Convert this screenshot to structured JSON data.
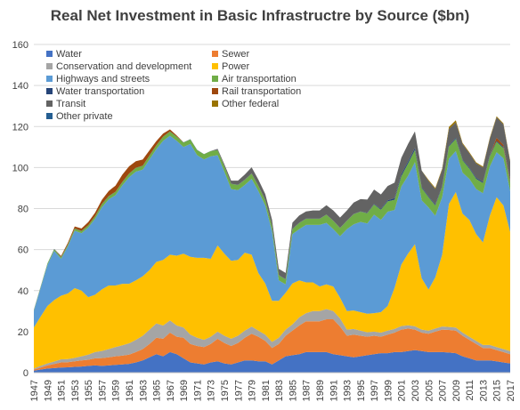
{
  "chart_data": {
    "type": "area",
    "stacked": true,
    "title": "Real Net Investment in Basic Infrastructre by Source ($bn)",
    "xlabel": "",
    "ylabel": "",
    "ylim": [
      0,
      160
    ],
    "yticks": [
      0,
      20,
      40,
      60,
      80,
      100,
      120,
      140,
      160
    ],
    "grid": "horizontal",
    "legend_position": "top-left",
    "x": [
      1947,
      1948,
      1949,
      1950,
      1951,
      1952,
      1953,
      1954,
      1955,
      1956,
      1957,
      1958,
      1959,
      1960,
      1961,
      1962,
      1963,
      1964,
      1965,
      1966,
      1967,
      1968,
      1969,
      1970,
      1971,
      1972,
      1973,
      1974,
      1975,
      1976,
      1977,
      1978,
      1979,
      1980,
      1981,
      1982,
      1983,
      1984,
      1985,
      1986,
      1987,
      1988,
      1989,
      1990,
      1991,
      1992,
      1993,
      1994,
      1995,
      1996,
      1997,
      1998,
      1999,
      2000,
      2001,
      2002,
      2003,
      2004,
      2005,
      2006,
      2007,
      2008,
      2009,
      2010,
      2011,
      2012,
      2013,
      2014,
      2015,
      2016,
      2017
    ],
    "xtick_labels": [
      "1947",
      "1949",
      "1951",
      "1953",
      "1955",
      "1957",
      "1959",
      "1961",
      "1963",
      "1965",
      "1967",
      "1969",
      "1971",
      "1973",
      "1975",
      "1977",
      "1979",
      "1981",
      "1983",
      "1985",
      "1987",
      "1989",
      "1991",
      "1993",
      "1995",
      "1997",
      "1999",
      "2001",
      "2003",
      "2005",
      "2007",
      "2009",
      "2011",
      "2013",
      "2015",
      "2017"
    ],
    "series": [
      {
        "name": "Water",
        "color": "#4472c4",
        "values": [
          1,
          1.5,
          2,
          2.2,
          2.5,
          2.6,
          2.8,
          3,
          3.3,
          3.5,
          3.3,
          3.5,
          3.8,
          4,
          4.3,
          5,
          6,
          7.5,
          9,
          8,
          10,
          9,
          7,
          5,
          4.5,
          4,
          5,
          5.5,
          4.5,
          4,
          5,
          6,
          6,
          5.5,
          5.5,
          4,
          6,
          8,
          8.5,
          9,
          10,
          10,
          10,
          10,
          9,
          8.5,
          8,
          7.5,
          8,
          8.5,
          9,
          9.5,
          9.5,
          10,
          10,
          10.5,
          11,
          10.5,
          10,
          10,
          10,
          9.8,
          9.5,
          8,
          7,
          6,
          6,
          6,
          5.5,
          5,
          4.5
        ]
      },
      {
        "name": "Sewer",
        "color": "#ed7d31",
        "values": [
          0.5,
          1,
          1.5,
          2,
          2.5,
          2.5,
          2.7,
          3,
          3,
          3.5,
          3.8,
          4,
          4.2,
          4.3,
          4.5,
          5,
          5.5,
          6.5,
          8,
          8.5,
          9.5,
          8.5,
          10,
          9,
          8.5,
          8.5,
          9,
          11,
          10,
          9,
          9.5,
          11,
          13,
          12,
          10,
          8,
          8,
          10,
          12,
          14,
          15,
          15,
          15,
          16,
          17,
          14,
          10,
          11,
          10,
          9,
          9,
          8,
          9,
          9.5,
          11,
          11,
          10,
          9,
          9,
          10,
          11,
          11,
          11,
          10,
          9,
          8,
          6,
          6,
          5.5,
          5,
          4.5
        ]
      },
      {
        "name": "Conservation and development",
        "color": "#a5a5a5",
        "values": [
          0.5,
          0.8,
          1,
          1.2,
          1.5,
          1.5,
          1.7,
          2,
          2.5,
          3,
          3.5,
          4,
          4.5,
          5,
          5.5,
          6,
          6.5,
          7,
          7,
          6.5,
          6,
          5.5,
          5,
          4.5,
          4,
          3.5,
          3.5,
          3.5,
          3.5,
          3.5,
          3.5,
          3.5,
          3.5,
          3,
          3,
          3,
          3,
          3,
          3,
          4,
          4,
          5,
          5,
          5,
          4,
          4,
          3,
          2.8,
          2.5,
          2.2,
          2,
          2,
          2,
          1.8,
          1.7,
          1.6,
          1.6,
          1.5,
          1.5,
          1.5,
          1.5,
          1.5,
          1.5,
          1.5,
          1.5,
          1.5,
          1.5,
          1.5,
          1.5,
          1.5,
          1.5
        ]
      },
      {
        "name": "Power",
        "color": "#ffc000",
        "values": [
          20,
          24,
          28,
          30,
          31,
          32,
          34,
          32,
          28,
          28,
          30,
          31,
          30,
          30,
          29,
          29,
          29,
          29,
          30,
          32,
          32,
          34,
          36,
          38,
          39,
          40,
          38,
          42,
          40,
          38,
          37,
          38,
          35,
          28,
          25,
          20,
          18,
          18,
          20,
          18,
          15,
          14,
          12,
          12,
          12,
          10,
          9,
          9,
          9,
          9,
          9,
          10,
          12,
          20,
          30,
          35,
          40,
          25,
          20,
          25,
          35,
          60,
          66,
          58,
          57,
          52,
          50,
          63,
          73,
          70,
          58
        ]
      },
      {
        "name": "Highways and streets",
        "color": "#5b9bd5",
        "values": [
          8,
          14,
          20,
          24,
          18,
          23,
          28,
          28,
          34,
          37,
          40,
          42,
          44,
          48,
          52,
          53,
          52,
          54,
          55,
          58,
          58,
          56,
          52,
          55,
          50,
          48,
          50,
          44,
          40,
          35,
          34,
          33,
          37,
          40,
          38,
          34,
          10,
          4,
          24,
          25,
          28,
          28,
          30,
          30,
          28,
          30,
          40,
          42,
          44,
          44,
          48,
          45,
          46,
          38,
          38,
          38,
          40,
          38,
          40,
          30,
          28,
          22,
          20,
          20,
          20,
          22,
          24,
          24,
          22,
          23,
          20
        ]
      },
      {
        "name": "Air transportation",
        "color": "#70ad47",
        "values": [
          0.5,
          0.5,
          0.7,
          0.8,
          0.8,
          0.8,
          1,
          1,
          1,
          1.2,
          1.5,
          1.5,
          1.6,
          1.6,
          1.7,
          1.8,
          1.8,
          1.8,
          1.8,
          2,
          2,
          2,
          2.2,
          2.2,
          2.5,
          2.5,
          2.5,
          2.5,
          2.5,
          2.5,
          2.5,
          2.5,
          2.5,
          2.5,
          2.5,
          2.5,
          2.5,
          2.5,
          2.5,
          3,
          3,
          3,
          3,
          4,
          4,
          4,
          4,
          5,
          5,
          5,
          5,
          5,
          5,
          5,
          5,
          6,
          6,
          6,
          5,
          5,
          5,
          6,
          6,
          6,
          5,
          5,
          5,
          5,
          5,
          5,
          4
        ]
      },
      {
        "name": "Water transportation",
        "color": "#264478",
        "values": [
          0.1,
          0.1,
          0.1,
          0.1,
          0.1,
          0.1,
          0.1,
          0.1,
          0.1,
          0.1,
          0.1,
          0.1,
          0.1,
          0.1,
          0.1,
          0.1,
          0.1,
          0.1,
          0.1,
          0.1,
          0.1,
          0.1,
          0.1,
          0.1,
          0.1,
          0.1,
          0.1,
          0.1,
          0.1,
          0.1,
          0.1,
          0.1,
          0.1,
          0.1,
          0.1,
          0.1,
          0.1,
          0.1,
          0.1,
          0.1,
          0.1,
          0.1,
          0.1,
          0.1,
          0.1,
          0.1,
          0.1,
          0.1,
          0.1,
          0.2,
          0.3,
          0.4,
          0.5,
          0.8,
          1,
          1,
          1,
          0.5,
          0.5,
          0.5,
          0.5,
          0.5,
          0.5,
          0.5,
          0.5,
          0.5,
          0.5,
          0.5,
          0.5,
          0.5,
          0.5
        ]
      },
      {
        "name": "Rail transportation",
        "color": "#9e480e",
        "values": [
          0,
          0,
          0,
          0,
          0.5,
          0.8,
          1,
          1.2,
          1.5,
          1.7,
          2,
          2.5,
          3,
          3.5,
          3.5,
          3.2,
          3,
          2.5,
          2,
          1.5,
          1,
          0.5,
          0,
          0,
          0,
          0,
          0,
          0,
          0,
          0,
          0,
          0,
          0,
          0,
          0,
          0,
          0,
          0,
          0,
          0,
          0,
          0,
          0,
          0,
          0,
          0,
          0,
          0,
          0,
          0,
          0,
          0,
          0,
          0,
          0,
          0,
          0,
          0,
          0,
          0,
          0,
          0,
          0,
          0,
          0,
          0,
          0,
          0,
          1.5,
          1,
          0.8
        ]
      },
      {
        "name": "Transit",
        "color": "#636363",
        "values": [
          0,
          0,
          0,
          0,
          0,
          0,
          0,
          0,
          0,
          0,
          0,
          0,
          0,
          0,
          0,
          0,
          0,
          0,
          0,
          0,
          0,
          0,
          0,
          0,
          0,
          0,
          0,
          0.5,
          1,
          1.5,
          2,
          2.5,
          3,
          3,
          3,
          3,
          3,
          3,
          3,
          3.5,
          3.5,
          4,
          4,
          4.5,
          5,
          5,
          5,
          5.5,
          6,
          6.5,
          7,
          7,
          7,
          7.5,
          8,
          8.5,
          8,
          8,
          7.5,
          7.5,
          8,
          8,
          7.5,
          7.5,
          7,
          7,
          7,
          8,
          10,
          10,
          9
        ]
      },
      {
        "name": "Other federal",
        "color": "#997300",
        "values": [
          0,
          0,
          0,
          0,
          0,
          0,
          0,
          0,
          0,
          0,
          0,
          0,
          0,
          0,
          0,
          0,
          0,
          0,
          0,
          0,
          0,
          0,
          0,
          0,
          0,
          0,
          0,
          0,
          0,
          0,
          0,
          0,
          0,
          0,
          0,
          0,
          0,
          0,
          0,
          0,
          0,
          0,
          0,
          0,
          0,
          0,
          0,
          0,
          0,
          0,
          0,
          0,
          0,
          0,
          0,
          0,
          0,
          0,
          0.5,
          0.5,
          0.5,
          1,
          1,
          0.5,
          0.5,
          0.5,
          0.5,
          0.5,
          0.5,
          0.5,
          0.5
        ]
      },
      {
        "name": "Other private",
        "color": "#255e91",
        "values": [
          0,
          0,
          0,
          0,
          0,
          0,
          0,
          0,
          0,
          0,
          0,
          0,
          0,
          0,
          0,
          0,
          0,
          0,
          0,
          0,
          0,
          0,
          0,
          0,
          0,
          0,
          0,
          0,
          0,
          0,
          0,
          0,
          0,
          0,
          0,
          0,
          0,
          0,
          0,
          0,
          0,
          0,
          0,
          0,
          0,
          0,
          0,
          0,
          0,
          0,
          0,
          0,
          0,
          0,
          0,
          0,
          0,
          0,
          0,
          0,
          0,
          0,
          0,
          0,
          0,
          0,
          0,
          0,
          0,
          0,
          0
        ]
      }
    ]
  }
}
